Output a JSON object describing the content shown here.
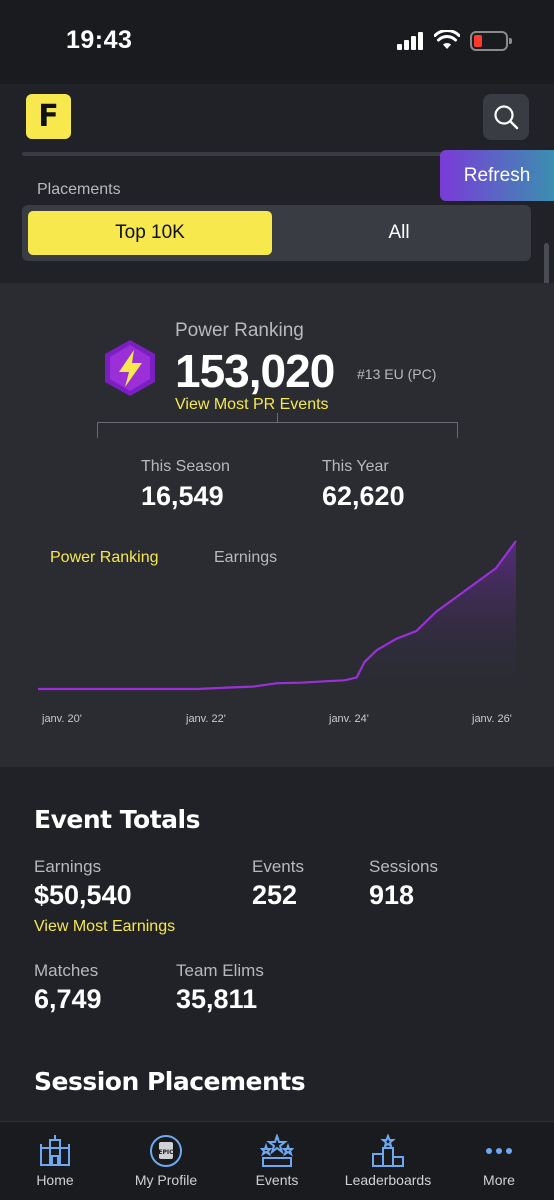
{
  "status_bar": {
    "time": "19:43"
  },
  "header": {
    "logo_letter": "F"
  },
  "placements": {
    "label": "Placements",
    "refresh_label": "Refresh",
    "options": [
      "Top 10K",
      "All"
    ],
    "selected": "Top 10K"
  },
  "power_ranking": {
    "label": "Power Ranking",
    "value": "153,020",
    "rank": "#13 EU (PC)",
    "link": "View Most PR Events",
    "this_season_label": "This Season",
    "this_season_value": "16,549",
    "this_year_label": "This Year",
    "this_year_value": "62,620"
  },
  "chart_tabs": {
    "active": "Power Ranking",
    "inactive": "Earnings"
  },
  "chart_data": {
    "type": "area",
    "x_ticks": [
      "janv. 20'",
      "janv. 22'",
      "janv. 24'",
      "janv. 26'"
    ],
    "x": [
      2020.0,
      2021.0,
      2022.0,
      2022.4,
      2022.7,
      2023.0,
      2023.3,
      2023.6,
      2023.85,
      2024.0,
      2024.1,
      2024.25,
      2024.5,
      2024.75,
      2025.0,
      2025.25,
      2025.5,
      2025.75,
      2026.0
    ],
    "y": [
      0,
      0,
      0,
      1500,
      2500,
      6000,
      6500,
      8000,
      9000,
      12000,
      28000,
      40000,
      52000,
      60000,
      80000,
      95000,
      110000,
      125000,
      153020
    ],
    "color": "#9b30d9",
    "grid": false
  },
  "event_totals": {
    "title": "Event Totals",
    "earnings_label": "Earnings",
    "earnings_value": "$50,540",
    "earnings_link": "View Most Earnings",
    "events_label": "Events",
    "events_value": "252",
    "sessions_label": "Sessions",
    "sessions_value": "918",
    "matches_label": "Matches",
    "matches_value": "6,749",
    "team_elims_label": "Team Elims",
    "team_elims_value": "35,811"
  },
  "session_placements": {
    "title": "Session Placements"
  },
  "nav": {
    "items": [
      {
        "label": "Home",
        "icon": "castle-icon"
      },
      {
        "label": "My Profile",
        "icon": "epic-badge-icon"
      },
      {
        "label": "Events",
        "icon": "stars-podium-icon"
      },
      {
        "label": "Leaderboards",
        "icon": "podium-icon"
      },
      {
        "label": "More",
        "icon": "dots-icon"
      }
    ]
  },
  "colors": {
    "accent_yellow": "#f6e84d",
    "purple": "#9b30d9",
    "bg": "#202227",
    "card": "#2a2c32"
  }
}
